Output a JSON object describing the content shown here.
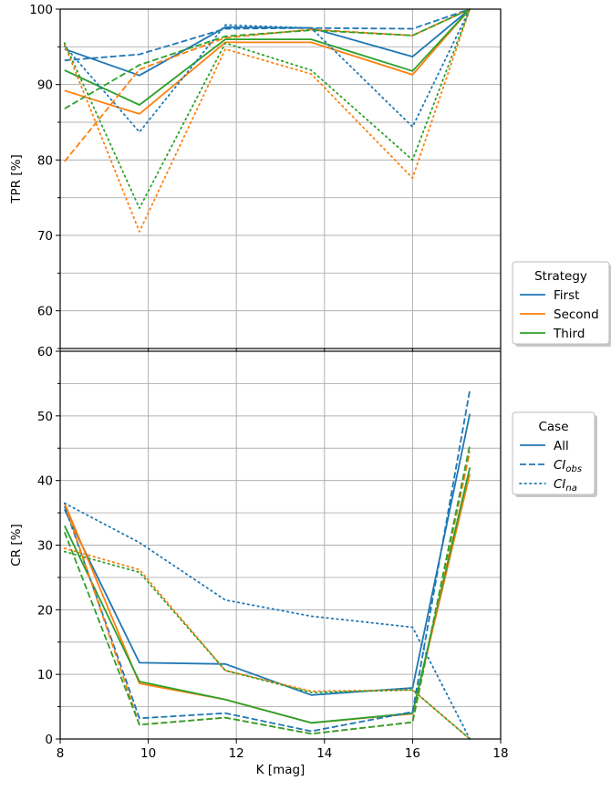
{
  "colors": {
    "first": "#1f77b4",
    "second": "#ff7f0e",
    "third": "#2ca02c",
    "grid": "#b0b0b0",
    "axis": "#000000"
  },
  "chart_data": [
    {
      "type": "line",
      "panel": "top",
      "ylabel": "TPR [%]",
      "xlim": [
        8,
        18
      ],
      "ylim": [
        55,
        100
      ],
      "yticks": [
        60,
        70,
        80,
        90,
        100
      ],
      "grid": true,
      "x": [
        8.1,
        9.8,
        11.75,
        13.7,
        16.0,
        17.3
      ],
      "series": [
        {
          "strategy": "First",
          "case": "All",
          "values": [
            94.7,
            91.2,
            97.6,
            97.5,
            93.7,
            100
          ]
        },
        {
          "strategy": "Second",
          "case": "All",
          "values": [
            89.2,
            86.1,
            95.6,
            95.6,
            91.3,
            100
          ]
        },
        {
          "strategy": "Third",
          "case": "All",
          "values": [
            91.9,
            87.3,
            96.0,
            96.0,
            91.8,
            100
          ]
        },
        {
          "strategy": "First",
          "case": "CIobs",
          "values": [
            93.2,
            94.0,
            97.4,
            97.5,
            97.4,
            100
          ]
        },
        {
          "strategy": "Second",
          "case": "CIobs",
          "values": [
            79.8,
            92.0,
            96.2,
            97.3,
            96.5,
            100
          ]
        },
        {
          "strategy": "Third",
          "case": "CIobs",
          "values": [
            86.8,
            92.6,
            96.4,
            97.2,
            96.5,
            100
          ]
        },
        {
          "strategy": "First",
          "case": "CIna",
          "values": [
            95.1,
            83.7,
            97.9,
            97.5,
            84.4,
            100
          ]
        },
        {
          "strategy": "Second",
          "case": "CIna",
          "values": [
            95.3,
            70.5,
            94.7,
            91.4,
            77.6,
            100
          ]
        },
        {
          "strategy": "Third",
          "case": "CIna",
          "values": [
            95.5,
            73.6,
            95.5,
            91.9,
            80.0,
            100
          ]
        }
      ]
    },
    {
      "type": "line",
      "panel": "bottom",
      "xlabel": "K [mag]",
      "ylabel": "CR [%]",
      "xlim": [
        8,
        18
      ],
      "ylim": [
        0,
        60
      ],
      "xticks": [
        8,
        10,
        12,
        14,
        16,
        18
      ],
      "yticks": [
        0,
        10,
        20,
        30,
        40,
        50,
        60
      ],
      "grid": true,
      "x": [
        8.1,
        9.8,
        11.75,
        13.7,
        16.0,
        17.3
      ],
      "series": [
        {
          "strategy": "First",
          "case": "All",
          "values": [
            35.5,
            11.8,
            11.6,
            6.8,
            7.9,
            50.3
          ]
        },
        {
          "strategy": "Second",
          "case": "All",
          "values": [
            36.5,
            8.6,
            6.1,
            2.5,
            3.9,
            41.0
          ]
        },
        {
          "strategy": "Third",
          "case": "All",
          "values": [
            33.0,
            8.9,
            6.1,
            2.5,
            4.0,
            42.0
          ]
        },
        {
          "strategy": "First",
          "case": "CIobs",
          "values": [
            36.0,
            3.2,
            4.0,
            1.2,
            4.2,
            54.0
          ]
        },
        {
          "strategy": "Second",
          "case": "CIobs",
          "values": [
            36.5,
            2.2,
            3.3,
            0.8,
            2.6,
            44.5
          ]
        },
        {
          "strategy": "Third",
          "case": "CIobs",
          "values": [
            32.0,
            2.2,
            3.3,
            0.8,
            2.6,
            45.5
          ]
        },
        {
          "strategy": "First",
          "case": "CIna",
          "values": [
            36.5,
            30.4,
            21.5,
            19.0,
            17.3,
            0
          ]
        },
        {
          "strategy": "Second",
          "case": "CIna",
          "values": [
            29.5,
            26.2,
            10.6,
            7.4,
            7.6,
            0
          ]
        },
        {
          "strategy": "Third",
          "case": "CIna",
          "values": [
            29.0,
            25.8,
            10.6,
            7.2,
            7.6,
            0
          ]
        }
      ]
    }
  ],
  "legends": {
    "strategy": {
      "title": "Strategy",
      "placement": "right, upper",
      "items": [
        {
          "label": "First",
          "color": "#1f77b4",
          "style": "solid"
        },
        {
          "label": "Second",
          "color": "#ff7f0e",
          "style": "solid"
        },
        {
          "label": "Third",
          "color": "#2ca02c",
          "style": "solid"
        }
      ]
    },
    "case": {
      "title": "Case",
      "placement": "right, lower",
      "items": [
        {
          "label": "All",
          "sub": "",
          "color": "#1f77b4",
          "style": "solid"
        },
        {
          "label": "CI",
          "sub": "obs",
          "color": "#1f77b4",
          "style": "dashed"
        },
        {
          "label": "CI",
          "sub": "na",
          "color": "#1f77b4",
          "style": "dotted"
        }
      ]
    }
  }
}
